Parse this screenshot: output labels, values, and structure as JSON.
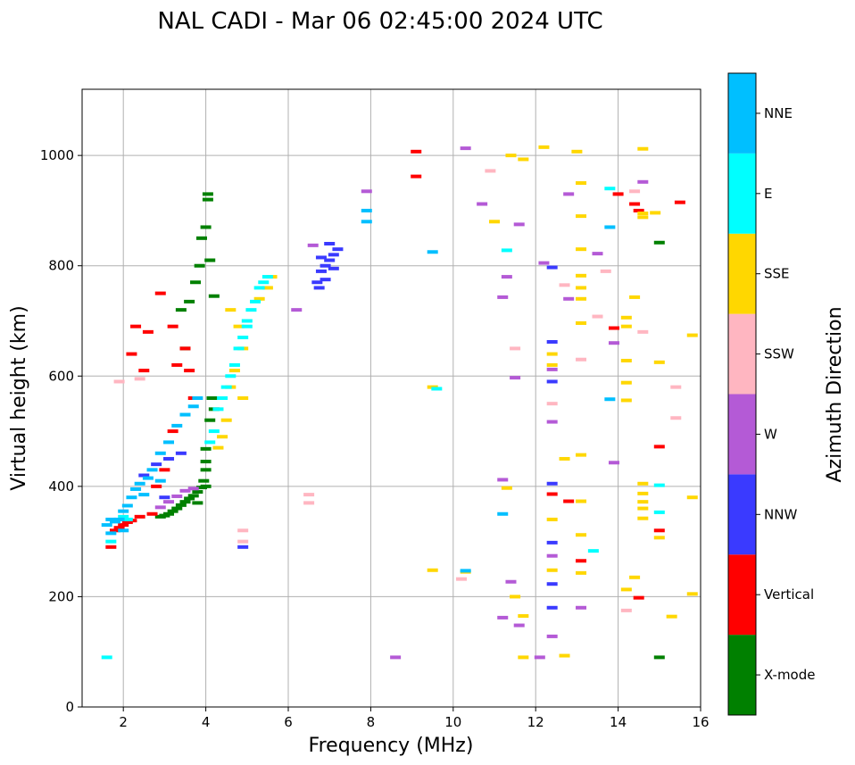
{
  "chart_data": {
    "type": "scatter",
    "title": "NAL CADI - Mar 06 02:45:00 2024 UTC",
    "xlabel": "Frequency (MHz)",
    "ylabel": "Virtual height (km)",
    "xlim": [
      1,
      16
    ],
    "ylim": [
      0,
      1120
    ],
    "xticks": [
      "2",
      "4",
      "6",
      "8",
      "10",
      "12",
      "14",
      "16"
    ],
    "yticks": [
      "0",
      "200",
      "400",
      "600",
      "800",
      "1000"
    ],
    "grid": true,
    "colorbar": {
      "title": "Azimuth Direction",
      "categories": [
        {
          "name": "X-mode",
          "color": "#008000"
        },
        {
          "name": "Vertical",
          "color": "#ff0000"
        },
        {
          "name": "NNW",
          "color": "#3a3aff"
        },
        {
          "name": "W",
          "color": "#b45ad6"
        },
        {
          "name": "SSW",
          "color": "#ffb6c1"
        },
        {
          "name": "SSE",
          "color": "#ffd700"
        },
        {
          "name": "E",
          "color": "#00ffff"
        },
        {
          "name": "NNE",
          "color": "#00bfff"
        }
      ]
    },
    "series": [
      {
        "name": "X-mode",
        "points": [
          [
            3.0,
            347
          ],
          [
            3.1,
            350
          ],
          [
            3.2,
            355
          ],
          [
            3.3,
            360
          ],
          [
            3.4,
            366
          ],
          [
            3.5,
            372
          ],
          [
            3.6,
            378
          ],
          [
            3.7,
            383
          ],
          [
            3.8,
            390
          ],
          [
            3.9,
            398
          ],
          [
            3.95,
            410
          ],
          [
            4.0,
            430
          ],
          [
            4.0,
            445
          ],
          [
            4.0,
            468
          ],
          [
            4.1,
            520
          ],
          [
            4.15,
            560
          ],
          [
            4.2,
            540
          ],
          [
            4.0,
            400
          ],
          [
            2.9,
            345
          ],
          [
            3.6,
            735
          ],
          [
            3.75,
            770
          ],
          [
            3.4,
            720
          ],
          [
            3.9,
            850
          ],
          [
            4.0,
            870
          ],
          [
            4.05,
            920
          ],
          [
            4.05,
            930
          ],
          [
            3.85,
            800
          ],
          [
            4.1,
            810
          ],
          [
            4.2,
            745
          ],
          [
            15.0,
            842
          ],
          [
            15.0,
            90
          ],
          [
            3.5,
            650
          ],
          [
            3.8,
            370
          ]
        ]
      },
      {
        "name": "Vertical",
        "points": [
          [
            1.8,
            320
          ],
          [
            1.9,
            325
          ],
          [
            2.0,
            330
          ],
          [
            2.1,
            335
          ],
          [
            1.7,
            290
          ],
          [
            2.2,
            338
          ],
          [
            2.4,
            345
          ],
          [
            2.7,
            350
          ],
          [
            2.3,
            690
          ],
          [
            2.2,
            640
          ],
          [
            2.6,
            680
          ],
          [
            2.9,
            750
          ],
          [
            3.2,
            690
          ],
          [
            3.5,
            650
          ],
          [
            3.6,
            610
          ],
          [
            3.3,
            620
          ],
          [
            2.5,
            610
          ],
          [
            3.7,
            560
          ],
          [
            3.2,
            500
          ],
          [
            9.1,
            1007
          ],
          [
            9.1,
            962
          ],
          [
            14.0,
            930
          ],
          [
            14.5,
            900
          ],
          [
            14.4,
            912
          ],
          [
            15.5,
            915
          ],
          [
            12.4,
            386
          ],
          [
            12.8,
            373
          ],
          [
            13.1,
            265
          ],
          [
            14.5,
            198
          ],
          [
            15.0,
            320
          ],
          [
            15.0,
            472
          ],
          [
            13.9,
            687
          ],
          [
            2.8,
            400
          ],
          [
            3.0,
            430
          ]
        ]
      },
      {
        "name": "NNW",
        "points": [
          [
            6.8,
            790
          ],
          [
            6.9,
            800
          ],
          [
            7.0,
            810
          ],
          [
            7.1,
            820
          ],
          [
            6.7,
            770
          ],
          [
            6.75,
            760
          ],
          [
            7.0,
            840
          ],
          [
            7.2,
            830
          ],
          [
            6.9,
            775
          ],
          [
            7.1,
            795
          ],
          [
            6.8,
            815
          ],
          [
            2.5,
            420
          ],
          [
            2.8,
            440
          ],
          [
            3.1,
            450
          ],
          [
            3.4,
            460
          ],
          [
            4.9,
            290
          ],
          [
            12.4,
            405
          ],
          [
            12.4,
            298
          ],
          [
            12.4,
            223
          ],
          [
            12.4,
            590
          ],
          [
            12.4,
            662
          ],
          [
            12.4,
            797
          ],
          [
            12.4,
            180
          ],
          [
            3.0,
            380
          ]
        ]
      },
      {
        "name": "W",
        "points": [
          [
            7.9,
            935
          ],
          [
            6.6,
            837
          ],
          [
            6.2,
            720
          ],
          [
            2.9,
            362
          ],
          [
            3.1,
            372
          ],
          [
            3.3,
            382
          ],
          [
            3.5,
            392
          ],
          [
            3.7,
            396
          ],
          [
            10.3,
            1013
          ],
          [
            10.7,
            912
          ],
          [
            11.3,
            780
          ],
          [
            11.2,
            743
          ],
          [
            11.6,
            875
          ],
          [
            11.5,
            597
          ],
          [
            12.2,
            805
          ],
          [
            12.4,
            612
          ],
          [
            12.4,
            517
          ],
          [
            12.4,
            274
          ],
          [
            12.4,
            128
          ],
          [
            12.8,
            930
          ],
          [
            12.8,
            740
          ],
          [
            13.1,
            180
          ],
          [
            13.5,
            822
          ],
          [
            13.9,
            443
          ],
          [
            13.9,
            660
          ],
          [
            14.6,
            952
          ],
          [
            11.6,
            148
          ],
          [
            8.6,
            90
          ],
          [
            12.1,
            90
          ],
          [
            11.2,
            162
          ],
          [
            11.2,
            412
          ],
          [
            11.4,
            227
          ]
        ]
      },
      {
        "name": "SSW",
        "points": [
          [
            4.9,
            300
          ],
          [
            4.9,
            320
          ],
          [
            6.5,
            370
          ],
          [
            6.5,
            385
          ],
          [
            12.7,
            765
          ],
          [
            13.1,
            630
          ],
          [
            13.7,
            790
          ],
          [
            14.4,
            935
          ],
          [
            14.6,
            680
          ],
          [
            15.4,
            580
          ],
          [
            15.4,
            524
          ],
          [
            14.2,
            175
          ],
          [
            12.4,
            550
          ],
          [
            10.2,
            232
          ],
          [
            10.9,
            972
          ],
          [
            11.5,
            650
          ],
          [
            2.4,
            595
          ],
          [
            1.9,
            590
          ],
          [
            13.5,
            708
          ]
        ]
      },
      {
        "name": "SSE",
        "points": [
          [
            5.5,
            760
          ],
          [
            5.6,
            780
          ],
          [
            5.3,
            740
          ],
          [
            4.6,
            720
          ],
          [
            4.8,
            690
          ],
          [
            4.9,
            650
          ],
          [
            4.7,
            610
          ],
          [
            4.9,
            560
          ],
          [
            4.5,
            520
          ],
          [
            4.4,
            490
          ],
          [
            4.3,
            470
          ],
          [
            4.6,
            580
          ],
          [
            9.5,
            580
          ],
          [
            9.5,
            248
          ],
          [
            10.3,
            245
          ],
          [
            11.0,
            880
          ],
          [
            11.4,
            1000
          ],
          [
            11.7,
            993
          ],
          [
            11.3,
            397
          ],
          [
            11.5,
            200
          ],
          [
            11.7,
            165
          ],
          [
            11.7,
            90
          ],
          [
            12.2,
            1015
          ],
          [
            12.4,
            640
          ],
          [
            12.4,
            620
          ],
          [
            12.4,
            248
          ],
          [
            12.4,
            340
          ],
          [
            12.7,
            450
          ],
          [
            12.7,
            93
          ],
          [
            13.0,
            1007
          ],
          [
            13.1,
            950
          ],
          [
            13.1,
            890
          ],
          [
            13.1,
            830
          ],
          [
            13.1,
            782
          ],
          [
            13.1,
            760
          ],
          [
            13.1,
            740
          ],
          [
            13.1,
            696
          ],
          [
            13.1,
            457
          ],
          [
            13.1,
            312
          ],
          [
            13.1,
            243
          ],
          [
            14.2,
            706
          ],
          [
            14.2,
            690
          ],
          [
            14.2,
            628
          ],
          [
            14.2,
            588
          ],
          [
            14.2,
            556
          ],
          [
            14.2,
            213
          ],
          [
            14.4,
            743
          ],
          [
            14.6,
            1012
          ],
          [
            14.6,
            895
          ],
          [
            14.6,
            888
          ],
          [
            14.6,
            405
          ],
          [
            14.6,
            387
          ],
          [
            14.6,
            372
          ],
          [
            14.6,
            360
          ],
          [
            14.6,
            342
          ],
          [
            14.9,
            896
          ],
          [
            15.0,
            625
          ],
          [
            15.0,
            307
          ],
          [
            15.3,
            164
          ],
          [
            15.8,
            674
          ],
          [
            15.8,
            380
          ],
          [
            15.8,
            205
          ],
          [
            14.4,
            235
          ],
          [
            13.1,
            373
          ]
        ]
      },
      {
        "name": "E",
        "points": [
          [
            5.0,
            700
          ],
          [
            5.1,
            720
          ],
          [
            5.2,
            735
          ],
          [
            5.3,
            760
          ],
          [
            5.4,
            770
          ],
          [
            5.5,
            780
          ],
          [
            4.8,
            650
          ],
          [
            4.7,
            620
          ],
          [
            4.6,
            600
          ],
          [
            4.5,
            580
          ],
          [
            4.4,
            560
          ],
          [
            4.3,
            540
          ],
          [
            4.9,
            670
          ],
          [
            5.0,
            690
          ],
          [
            2.0,
            345
          ],
          [
            2.1,
            340
          ],
          [
            1.7,
            300
          ],
          [
            1.6,
            90
          ],
          [
            9.6,
            577
          ],
          [
            11.3,
            828
          ],
          [
            13.4,
            283
          ],
          [
            13.8,
            940
          ],
          [
            15.0,
            402
          ],
          [
            15.0,
            353
          ],
          [
            4.1,
            480
          ],
          [
            4.2,
            500
          ]
        ]
      },
      {
        "name": "NNE",
        "points": [
          [
            1.6,
            330
          ],
          [
            1.7,
            340
          ],
          [
            1.8,
            336
          ],
          [
            1.9,
            340
          ],
          [
            2.0,
            355
          ],
          [
            2.1,
            365
          ],
          [
            2.2,
            380
          ],
          [
            2.3,
            395
          ],
          [
            2.4,
            405
          ],
          [
            2.6,
            415
          ],
          [
            2.7,
            430
          ],
          [
            2.9,
            460
          ],
          [
            3.1,
            480
          ],
          [
            3.3,
            510
          ],
          [
            3.5,
            530
          ],
          [
            3.7,
            545
          ],
          [
            3.8,
            560
          ],
          [
            2.5,
            385
          ],
          [
            2.9,
            410
          ],
          [
            7.9,
            900
          ],
          [
            7.9,
            880
          ],
          [
            9.5,
            825
          ],
          [
            10.3,
            247
          ],
          [
            11.2,
            350
          ],
          [
            13.8,
            870
          ],
          [
            13.8,
            558
          ],
          [
            1.7,
            315
          ],
          [
            2.0,
            320
          ]
        ]
      }
    ]
  }
}
